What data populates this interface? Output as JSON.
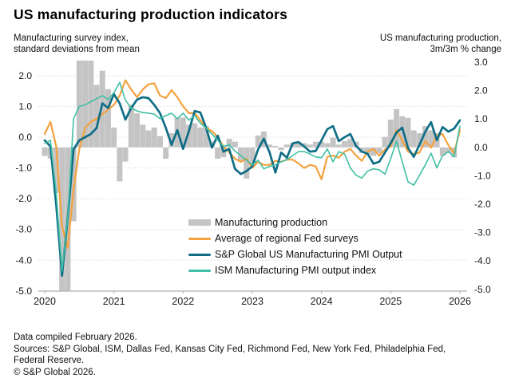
{
  "header": {
    "title": "US manufacturing production indicators"
  },
  "axis_captions": {
    "left_line1": "Manufacturing survey index,",
    "left_line2": "standard deviations from mean",
    "right_line1": "US manufacturing production,",
    "right_line2": "3m/3m % change"
  },
  "legend": {
    "items": [
      {
        "label": "Manufacturing production",
        "swatch": "bar",
        "color": "#c4c4c4"
      },
      {
        "label": "Average of regional Fed surveys",
        "swatch": "line",
        "color": "#f4a23f"
      },
      {
        "label": "S&P Global US Manufacturing PMI Output",
        "swatch": "line",
        "color": "#0f6e86"
      },
      {
        "label": "ISM Manufacturing PMI output index",
        "swatch": "line",
        "color": "#41bfa5"
      }
    ]
  },
  "footer": {
    "lines": [
      "Data compiled February 2026.",
      "Sources: S&P Global, ISM, Dallas Fed, Kansas City Fed, Richmond Fed, New York Fed, Philadelphia Fed,",
      "Federal Reserve.",
      "© S&P Global 2026."
    ]
  },
  "colors": {
    "bars": "#c4c4c4",
    "fed_surveys": "#f4a23f",
    "spglobal_pmi": "#0f6e86",
    "ism_pmi": "#41bfa5",
    "gridline": "#d9d9d9",
    "axis_line": "#b0b0b0",
    "text": "#1a1a1a"
  },
  "chart_data": {
    "type": "bar+line combo, dual y-axis",
    "frequency": "monthly",
    "x_start": "2020-01",
    "x_end": "2026-01",
    "x_tick_labels": [
      "2020",
      "2021",
      "2022",
      "2023",
      "2024",
      "2025",
      "2026"
    ],
    "left_axis": {
      "title": "Manufacturing survey index, standard deviations from mean",
      "ticks": [
        "2.0",
        "1.0",
        "0.0",
        "-1.0",
        "-2.0",
        "-3.0",
        "-4.0",
        "-5.0"
      ],
      "tick_values": [
        2,
        1,
        0,
        -1,
        -2,
        -3,
        -4,
        -5
      ],
      "range": [
        -5.0,
        2.5
      ]
    },
    "right_axis": {
      "title": "US manufacturing production, 3m/3m % change",
      "ticks": [
        "3.0",
        "2.0",
        "1.0",
        "0.0",
        "-1.0",
        "-2.0",
        "-3.0",
        "-4.0",
        "-5.0"
      ],
      "tick_values": [
        3,
        2,
        1,
        0,
        -1,
        -2,
        -3,
        -4,
        -5
      ],
      "range": [
        -5.0,
        3.0
      ]
    },
    "grid": "dotted horizontal at left-axis ticks",
    "legend_position": "inside lower-middle",
    "months": [
      "2020-01",
      "2020-02",
      "2020-03",
      "2020-04",
      "2020-05",
      "2020-06",
      "2020-07",
      "2020-08",
      "2020-09",
      "2020-10",
      "2020-11",
      "2020-12",
      "2021-01",
      "2021-02",
      "2021-03",
      "2021-04",
      "2021-05",
      "2021-06",
      "2021-07",
      "2021-08",
      "2021-09",
      "2021-10",
      "2021-11",
      "2021-12",
      "2022-01",
      "2022-02",
      "2022-03",
      "2022-04",
      "2022-05",
      "2022-06",
      "2022-07",
      "2022-08",
      "2022-09",
      "2022-10",
      "2022-11",
      "2022-12",
      "2023-01",
      "2023-02",
      "2023-03",
      "2023-04",
      "2023-05",
      "2023-06",
      "2023-07",
      "2023-08",
      "2023-09",
      "2023-10",
      "2023-11",
      "2023-12",
      "2024-01",
      "2024-02",
      "2024-03",
      "2024-04",
      "2024-05",
      "2024-06",
      "2024-07",
      "2024-08",
      "2024-09",
      "2024-10",
      "2024-11",
      "2024-12",
      "2025-01",
      "2025-02",
      "2025-03",
      "2025-04",
      "2025-05",
      "2025-06",
      "2025-07",
      "2025-08",
      "2025-09",
      "2025-10",
      "2025-11",
      "2025-12",
      "2026-01"
    ],
    "bars": {
      "name": "Manufacturing production",
      "axis": "right",
      "values": [
        -0.3,
        -0.4,
        -1.6,
        -5.2,
        -5.1,
        -2.6,
        3.3,
        3.3,
        3.1,
        2.2,
        2.7,
        2.05,
        0.7,
        -1.2,
        -0.5,
        1.5,
        1.2,
        0.8,
        0.6,
        0.7,
        0.4,
        -0.4,
        0.5,
        1.05,
        1.05,
        0.8,
        0.85,
        0.7,
        0.75,
        0.2,
        -0.4,
        -0.35,
        0.3,
        0.2,
        -0.5,
        -1.1,
        -0.6,
        0.42,
        0.56,
        0.1,
        0.05,
        -0.1,
        0.1,
        0.15,
        0.2,
        0.15,
        0.1,
        0.2,
        0.2,
        0.15,
        0.34,
        0.1,
        0.22,
        0.3,
        0.2,
        -0.2,
        -0.25,
        -0.3,
        -0.2,
        0.37,
        0.98,
        1.35,
        1.1,
        1.04,
        0.6,
        0.5,
        0.75,
        0.6,
        0.5,
        -0.3,
        -0.2,
        -0.35,
        null
      ]
    },
    "series": [
      {
        "name": "Average of regional Fed surveys",
        "axis": "left",
        "color": "#f4a23f",
        "stroke_width": 2.2,
        "values": [
          0.1,
          0.5,
          -0.3,
          -2.9,
          -3.6,
          -1.7,
          -0.4,
          0.3,
          0.5,
          0.6,
          0.75,
          0.9,
          1.05,
          1.35,
          1.85,
          1.55,
          1.3,
          1.55,
          1.72,
          1.75,
          1.35,
          1.27,
          1.53,
          1.3,
          1.0,
          0.78,
          0.78,
          0.55,
          0.3,
          0.2,
          0.0,
          -0.3,
          -0.5,
          -0.7,
          -0.8,
          -0.7,
          -1.0,
          -0.8,
          -0.9,
          -0.9,
          -0.77,
          -0.8,
          -0.73,
          -0.73,
          -0.85,
          -1.0,
          -0.9,
          -0.95,
          -1.37,
          -0.64,
          -0.6,
          -0.67,
          -0.47,
          -0.38,
          -0.6,
          -0.77,
          -0.47,
          -0.38,
          -0.6,
          -0.4,
          -0.3,
          0.23,
          -0.1,
          -0.47,
          -0.55,
          -0.5,
          -0.13,
          -0.34,
          0.05,
          0.1,
          -0.26,
          -0.52,
          0.23
        ]
      },
      {
        "name": "S&P Global US Manufacturing PMI Output",
        "axis": "left",
        "color": "#0f6e86",
        "stroke_width": 2.7,
        "values": [
          -0.1,
          -0.3,
          -2.2,
          -4.5,
          -2.6,
          -0.4,
          -0.1,
          0.0,
          0.1,
          0.3,
          1.1,
          0.95,
          1.4,
          1.1,
          0.57,
          0.95,
          1.22,
          1.3,
          1.27,
          1.05,
          0.78,
          0.3,
          -0.25,
          0.23,
          -0.38,
          0.2,
          0.85,
          0.8,
          0.3,
          -0.34,
          0.05,
          -0.47,
          -0.38,
          -1.03,
          -1.2,
          -1.1,
          -0.95,
          -0.4,
          -0.05,
          -0.5,
          -1.15,
          -0.5,
          -0.67,
          -0.2,
          -0.16,
          -0.3,
          -0.47,
          -0.45,
          -0.1,
          0.26,
          0.36,
          -0.13,
          0.0,
          0.1,
          -0.29,
          -0.47,
          -0.54,
          -0.86,
          -0.8,
          -0.5,
          -0.2,
          0.15,
          0.31,
          -0.35,
          -0.64,
          -0.25,
          0.18,
          0.49,
          -0.1,
          0.33,
          0.18,
          0.28,
          0.55
        ]
      },
      {
        "name": "ISM Manufacturing PMI output index",
        "axis": "left",
        "color": "#41bfa5",
        "stroke_width": 1.6,
        "values": [
          -0.2,
          -0.1,
          -1.8,
          -4.35,
          -2.6,
          0.6,
          1.0,
          1.05,
          1.15,
          1.25,
          1.35,
          1.22,
          1.45,
          1.78,
          1.2,
          0.95,
          0.85,
          0.8,
          0.78,
          0.75,
          0.6,
          0.7,
          0.78,
          0.6,
          0.78,
          0.55,
          0.7,
          0.45,
          0.3,
          0.1,
          -0.1,
          -0.3,
          -0.25,
          -0.45,
          -0.6,
          -0.75,
          -0.9,
          -0.75,
          -1.03,
          -0.95,
          -0.9,
          -0.8,
          -0.73,
          -0.6,
          -0.47,
          -0.47,
          -0.55,
          -0.64,
          -0.67,
          -0.38,
          -0.8,
          -0.47,
          -0.55,
          -1.0,
          -1.24,
          -1.33,
          -1.1,
          -1.03,
          -1.06,
          -1.2,
          -0.7,
          -0.13,
          -0.8,
          -1.45,
          -1.56,
          -1.24,
          -0.9,
          -0.52,
          -1.0,
          -0.6,
          -0.47,
          -0.64,
          0.36
        ]
      }
    ]
  }
}
